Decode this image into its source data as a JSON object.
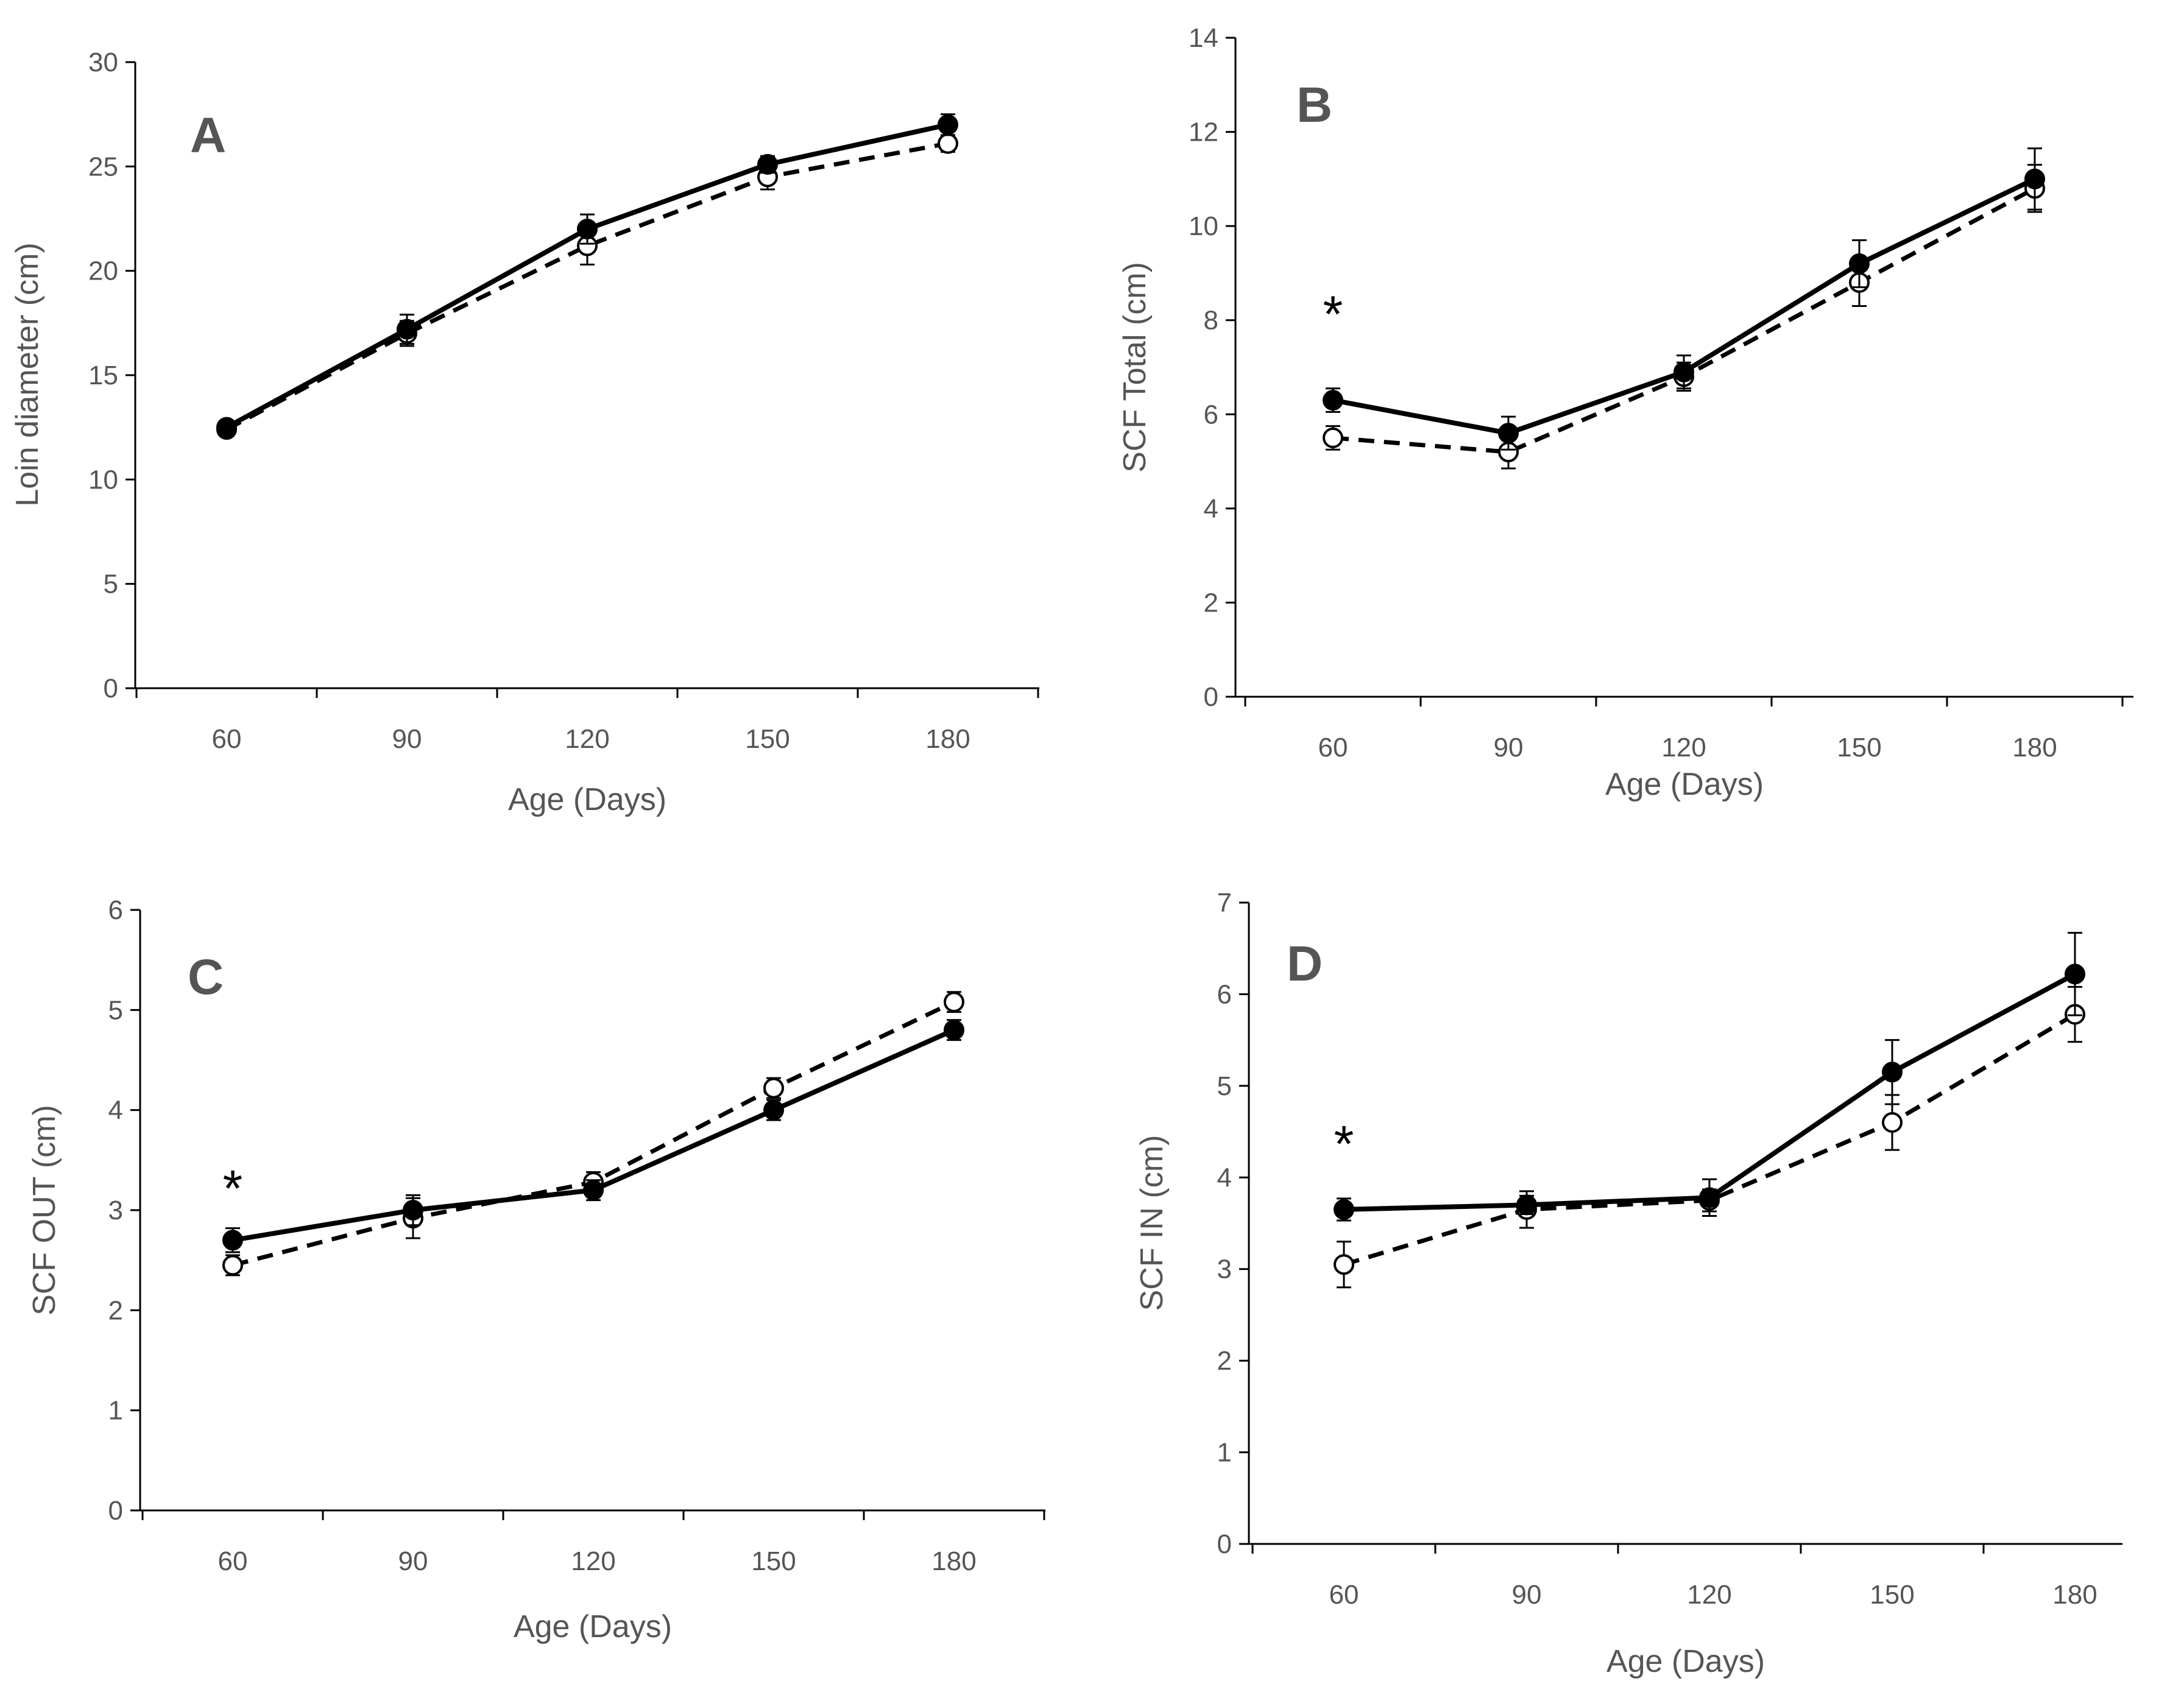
{
  "chart_data": [
    {
      "type": "line",
      "panel_label": "A",
      "xlabel": "Age (Days)",
      "ylabel": "Loin diameter (cm)",
      "categories": [
        "60",
        "90",
        "120",
        "150",
        "180"
      ],
      "ylim": [
        0,
        30
      ],
      "yticks": [
        "0",
        "5",
        "10",
        "15",
        "20",
        "25",
        "30"
      ],
      "series": [
        {
          "style": "solid-filled",
          "values": [
            12.5,
            17.2,
            22.0,
            25.1,
            27.0
          ],
          "errors": [
            0.3,
            0.7,
            0.7,
            0.4,
            0.5
          ]
        },
        {
          "style": "dashed-open",
          "values": [
            12.4,
            17.0,
            21.2,
            24.5,
            26.1
          ],
          "errors": [
            0.3,
            0.6,
            0.9,
            0.6,
            0.4
          ]
        }
      ],
      "annotations": []
    },
    {
      "type": "line",
      "panel_label": "B",
      "xlabel": "Age (Days)",
      "ylabel": "SCF Total (cm)",
      "categories": [
        "60",
        "90",
        "120",
        "150",
        "180"
      ],
      "ylim": [
        0,
        14
      ],
      "yticks": [
        "0",
        "2",
        "4",
        "6",
        "8",
        "10",
        "12",
        "14"
      ],
      "series": [
        {
          "style": "solid-filled",
          "values": [
            6.3,
            5.6,
            6.9,
            9.2,
            11.0
          ],
          "errors": [
            0.25,
            0.35,
            0.35,
            0.5,
            0.65
          ]
        },
        {
          "style": "dashed-open",
          "values": [
            5.5,
            5.2,
            6.8,
            8.8,
            10.8
          ],
          "errors": [
            0.25,
            0.35,
            0.3,
            0.5,
            0.5
          ]
        }
      ],
      "annotations": [
        {
          "text": "*",
          "category": "60",
          "y": 8.2
        }
      ]
    },
    {
      "type": "line",
      "panel_label": "C",
      "xlabel": "Age (Days)",
      "ylabel": "SCF OUT (cm)",
      "categories": [
        "60",
        "90",
        "120",
        "150",
        "180"
      ],
      "ylim": [
        0,
        6
      ],
      "yticks": [
        "0",
        "1",
        "2",
        "3",
        "4",
        "5",
        "6"
      ],
      "series": [
        {
          "style": "solid-filled",
          "values": [
            2.7,
            3.0,
            3.2,
            4.0,
            4.8
          ],
          "errors": [
            0.12,
            0.15,
            0.1,
            0.1,
            0.1
          ]
        },
        {
          "style": "dashed-open",
          "values": [
            2.45,
            2.92,
            3.28,
            4.22,
            5.08
          ],
          "errors": [
            0.1,
            0.2,
            0.1,
            0.1,
            0.1
          ]
        }
      ],
      "annotations": [
        {
          "text": "*",
          "category": "60",
          "y": 3.25
        }
      ]
    },
    {
      "type": "line",
      "panel_label": "D",
      "xlabel": "Age (Days)",
      "ylabel": "SCF IN (cm)",
      "categories": [
        "60",
        "90",
        "120",
        "150",
        "180"
      ],
      "ylim": [
        0,
        7
      ],
      "yticks": [
        "0",
        "1",
        "2",
        "3",
        "4",
        "5",
        "6",
        "7"
      ],
      "series": [
        {
          "style": "solid-filled",
          "values": [
            3.65,
            3.7,
            3.78,
            5.15,
            6.22
          ],
          "errors": [
            0.12,
            0.1,
            0.2,
            0.35,
            0.45
          ]
        },
        {
          "style": "dashed-open",
          "values": [
            3.05,
            3.65,
            3.75,
            4.6,
            5.78
          ],
          "errors": [
            0.25,
            0.2,
            0.12,
            0.3,
            0.3
          ]
        }
      ],
      "annotations": [
        {
          "text": "*",
          "category": "60",
          "y": 4.4
        }
      ]
    }
  ]
}
